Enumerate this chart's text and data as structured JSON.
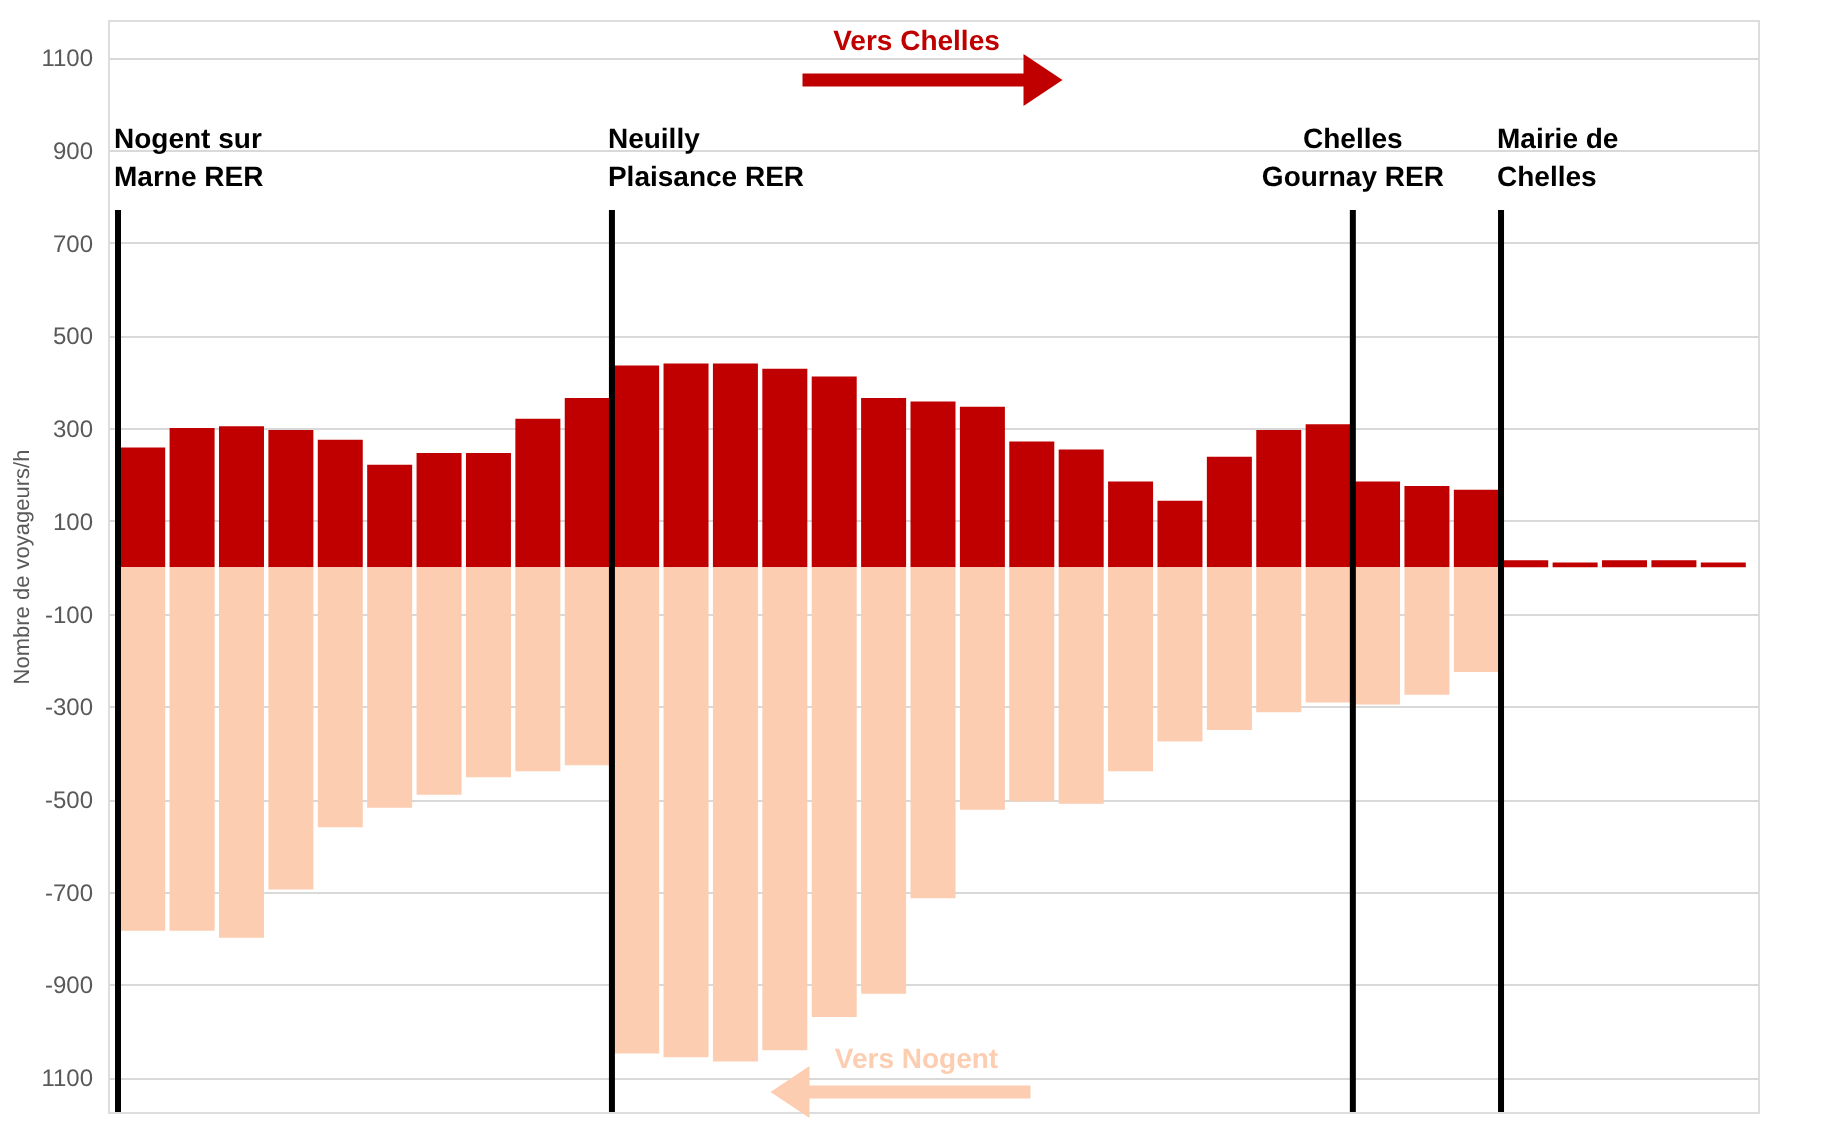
{
  "chart_data": {
    "type": "bar",
    "ylabel": "Nombre de voyageurs/h",
    "categories": [
      null,
      null,
      null,
      null,
      null,
      null,
      null,
      null,
      null,
      null,
      null,
      null,
      null,
      null,
      null,
      null,
      null,
      null,
      null,
      null,
      null,
      null,
      null,
      null,
      null,
      null,
      null,
      null,
      null,
      null,
      null,
      null,
      null
    ],
    "ylim": [
      -1175,
      1180
    ],
    "yticks": [
      {
        "value": -1100,
        "label": "1100"
      },
      -900,
      -700,
      -500,
      -300,
      -100,
      100,
      300,
      500,
      700,
      900,
      1100
    ],
    "stacked": true,
    "grid": "y",
    "tick_labels": "y",
    "legend": false,
    "series": [
      {
        "name": "Vers Chelles",
        "color": "#c00000",
        "values": [
          258,
          300,
          304,
          296,
          275,
          221,
          246,
          246,
          320,
          365,
          435,
          439,
          439,
          428,
          411,
          365,
          357,
          346,
          271,
          254,
          185,
          143,
          238,
          296,
          308,
          185,
          175,
          167,
          15,
          10,
          15,
          15,
          10
        ]
      },
      {
        "name": "Vers Nogent",
        "color": "#fccdb0",
        "values": [
          -784,
          -784,
          -799,
          -695,
          -561,
          -519,
          -491,
          -453,
          -440,
          -427,
          -1049,
          -1057,
          -1066,
          -1042,
          -970,
          -920,
          -714,
          -523,
          -505,
          -510,
          -440,
          -376,
          -351,
          -313,
          -292,
          -296,
          -275,
          -226,
          null,
          null,
          null,
          null,
          null
        ]
      }
    ],
    "annotations": [
      "Nogent sur Marne RER",
      "Neuilly Plaisance RER",
      "Chelles Gournay RER",
      "Mairie de Chelles"
    ]
  }
}
